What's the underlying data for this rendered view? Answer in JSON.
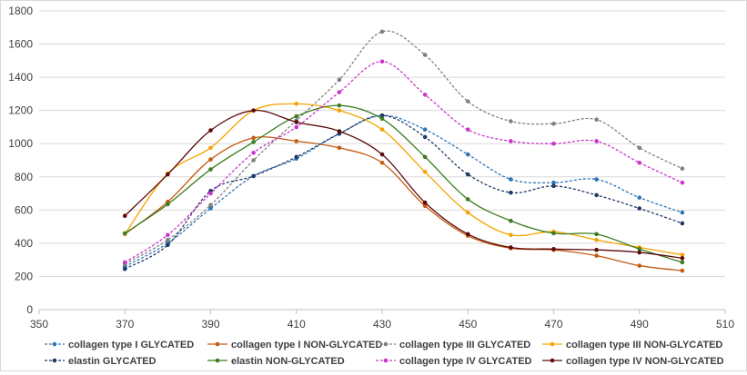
{
  "chart_data": {
    "type": "line",
    "xlim": [
      350,
      510
    ],
    "ylim": [
      0,
      1800
    ],
    "x_ticks": [
      350,
      370,
      390,
      410,
      430,
      450,
      470,
      490,
      510
    ],
    "y_ticks": [
      0,
      200,
      400,
      600,
      800,
      1000,
      1200,
      1400,
      1600,
      1800
    ],
    "grid": true,
    "legend_position": "bottom",
    "x": [
      370,
      380,
      390,
      400,
      410,
      420,
      430,
      440,
      450,
      460,
      470,
      480,
      490,
      500
    ],
    "series": [
      {
        "name": "collagen type I GLYCATED",
        "color": "#2e75b6",
        "dashed": true,
        "values": [
          260,
          400,
          610,
          805,
          910,
          1060,
          1170,
          1085,
          935,
          785,
          765,
          785,
          675,
          585
        ]
      },
      {
        "name": "collagen type I NON-GLYCATED",
        "color": "#c55a11",
        "dashed": false,
        "values": [
          455,
          650,
          905,
          1035,
          1015,
          975,
          885,
          625,
          445,
          370,
          360,
          325,
          265,
          235
        ]
      },
      {
        "name": "collagen type III GLYCATED",
        "color": "#7f7f7f",
        "dashed": true,
        "values": [
          275,
          420,
          630,
          900,
          1140,
          1385,
          1675,
          1535,
          1255,
          1135,
          1120,
          1145,
          975,
          850
        ]
      },
      {
        "name": "collagen type III NON-GLYCATED",
        "color": "#f4a300",
        "dashed": false,
        "values": [
          455,
          820,
          975,
          1200,
          1240,
          1200,
          1085,
          830,
          585,
          450,
          470,
          420,
          375,
          330
        ]
      },
      {
        "name": "elastin GLYCATED",
        "color": "#203864",
        "dashed": true,
        "values": [
          245,
          390,
          715,
          805,
          920,
          1060,
          1170,
          1040,
          815,
          705,
          745,
          690,
          610,
          520
        ]
      },
      {
        "name": "elastin NON-GLYCATED",
        "color": "#3a7d1e",
        "dashed": false,
        "values": [
          460,
          635,
          845,
          1010,
          1165,
          1230,
          1150,
          920,
          665,
          535,
          460,
          455,
          365,
          285
        ]
      },
      {
        "name": "collagen type IV GLYCATED",
        "color": "#cc33cc",
        "dashed": true,
        "values": [
          285,
          450,
          700,
          945,
          1100,
          1310,
          1495,
          1295,
          1085,
          1015,
          1000,
          1015,
          885,
          765
        ]
      },
      {
        "name": "collagen type IV NON-GLYCATED",
        "color": "#5c0a0a",
        "dashed": false,
        "values": [
          565,
          815,
          1080,
          1200,
          1130,
          1075,
          935,
          645,
          455,
          375,
          365,
          360,
          345,
          310
        ]
      }
    ]
  }
}
